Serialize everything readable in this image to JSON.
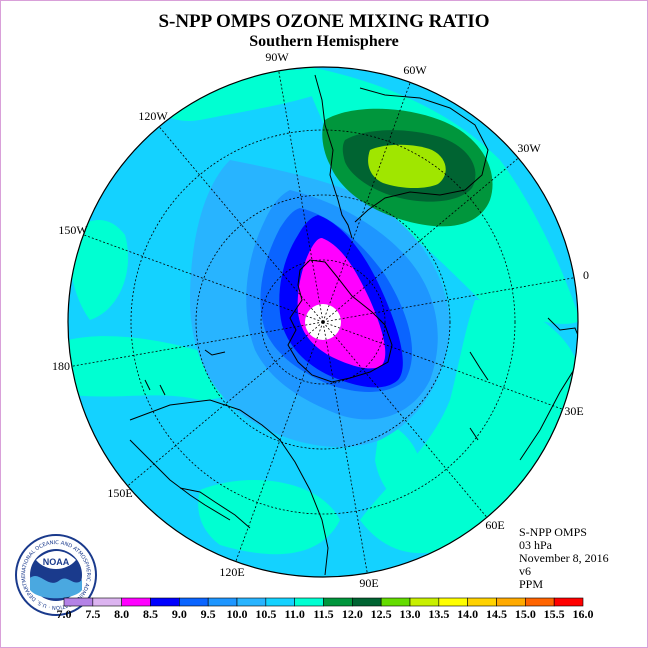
{
  "title": "S-NPP OMPS OZONE MIXING RATIO",
  "subtitle": "Southern Hemisphere",
  "longitude_labels": [
    "90W",
    "60W",
    "30W",
    "0",
    "30E",
    "60E",
    "90E",
    "120E",
    "150E",
    "180",
    "150W",
    "120W"
  ],
  "info": {
    "product": "S-NPP OMPS",
    "level": "03 hPa",
    "date": "November 8, 2016",
    "version": "v6",
    "units": "PPM"
  },
  "logo": {
    "text": "NOAA",
    "ring_text": "NATIONAL OCEANIC AND ATMOSPHERIC ADMINISTRATION · U.S. DEPARTMENT OF COMMERCE"
  },
  "colorbar": {
    "ticks": [
      "7.0",
      "7.5",
      "8.0",
      "8.5",
      "9.0",
      "9.5",
      "10.0",
      "10.5",
      "11.0",
      "11.5",
      "12.0",
      "12.5",
      "13.0",
      "13.5",
      "14.0",
      "14.5",
      "15.0",
      "15.5",
      "16.0"
    ],
    "colors": [
      "#b482e6",
      "#dcb4f0",
      "#ff00ff",
      "#0000ff",
      "#0a64ff",
      "#1e96ff",
      "#28b4ff",
      "#14d2ff",
      "#00ffd2",
      "#00963c",
      "#006432",
      "#64dc00",
      "#c8f000",
      "#ffff00",
      "#ffd200",
      "#ffaa00",
      "#ff6400",
      "#ff0000",
      "#8c5a3c"
    ]
  }
}
